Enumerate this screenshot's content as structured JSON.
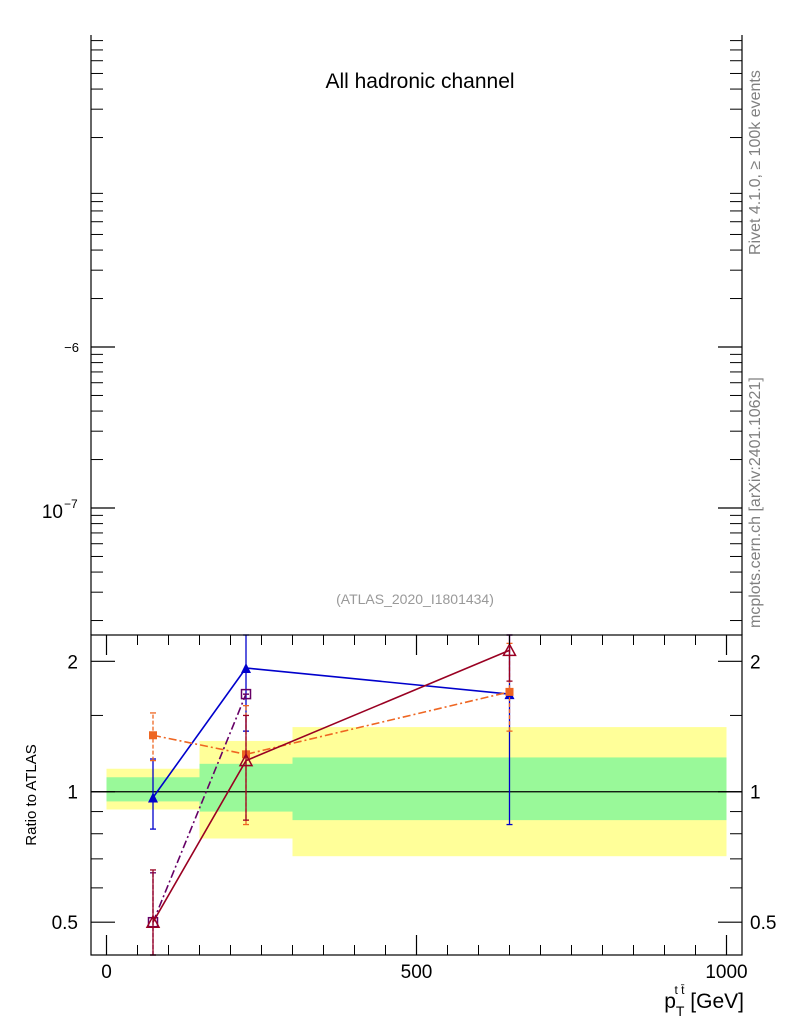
{
  "side_labels": {
    "rivet": "Rivet 4.1.0, ≥ 100k events",
    "mcplots": "mcplots.cern.ch [arXiv:2401.10621]"
  },
  "chart_data": [
    {
      "type": "line",
      "title": "All hadronic channel",
      "annotation": "(ATLAS_2020_I1801434)",
      "yscale": "log",
      "y_ticks": [
        {
          "label": "−6",
          "sup": "",
          "value": 1e-06
        },
        {
          "label": "10",
          "sup": "−7",
          "value": 1e-07
        }
      ],
      "series": []
    },
    {
      "type": "line",
      "ylabel": "Ratio to ATLAS",
      "xlabel": "p",
      "xlabel_sup": "t t̄",
      "xlabel_sub": "T",
      "xlabel_unit": " [GeV]",
      "xlim": [
        -25,
        1025
      ],
      "ylim": [
        0.42,
        2.3
      ],
      "x_ticks": [
        0,
        500,
        1000
      ],
      "x_tick_labels": [
        "0",
        "500",
        "1000"
      ],
      "y_ticks": [
        0.5,
        1,
        2
      ],
      "y_tick_labels": [
        "0.5",
        "1",
        "2"
      ],
      "reference_line": 1,
      "bands": [
        {
          "x": [
            0,
            150
          ],
          "green": [
            0.95,
            1.08
          ],
          "yellow": [
            0.91,
            1.13
          ]
        },
        {
          "x": [
            150,
            300
          ],
          "green": [
            0.9,
            1.16
          ],
          "yellow": [
            0.78,
            1.31
          ]
        },
        {
          "x": [
            300,
            1000
          ],
          "green": [
            0.86,
            1.2
          ],
          "yellow": [
            0.71,
            1.41
          ]
        }
      ],
      "band_colors": {
        "green": "#99f999",
        "yellow": "#ffff99"
      },
      "series": [
        {
          "color": "#0000cc",
          "marker": "filled-triangle",
          "dash": "solid",
          "x": [
            75,
            225,
            650
          ],
          "y": [
            0.97,
            1.93,
            1.68
          ],
          "err_lo": [
            0.82,
            1.38,
            0.84
          ],
          "err_hi": [
            1.19,
            2.55,
            2.7
          ]
        },
        {
          "color": "#ee6622",
          "marker": "filled-square",
          "dash": "dashdot",
          "x": [
            75,
            225,
            650
          ],
          "y": [
            1.35,
            1.22,
            1.7
          ],
          "err_lo": [
            1.18,
            0.84,
            1.38
          ],
          "err_hi": [
            1.52,
            1.58,
            2.2
          ]
        },
        {
          "color": "#660066",
          "marker": "open-square",
          "dash": "dashdot",
          "x": [
            75,
            225
          ],
          "y": [
            0.5,
            1.68
          ],
          "err_lo": [
            0.35,
            1.68
          ],
          "err_hi": [
            0.65,
            1.68
          ]
        },
        {
          "color": "#990022",
          "marker": "open-triangle",
          "dash": "solid",
          "x": [
            75,
            225,
            650
          ],
          "y": [
            0.5,
            1.18,
            2.12
          ],
          "err_lo": [
            0.3,
            0.86,
            1.8
          ],
          "err_hi": [
            0.66,
            1.5,
            2.35
          ]
        }
      ]
    }
  ]
}
